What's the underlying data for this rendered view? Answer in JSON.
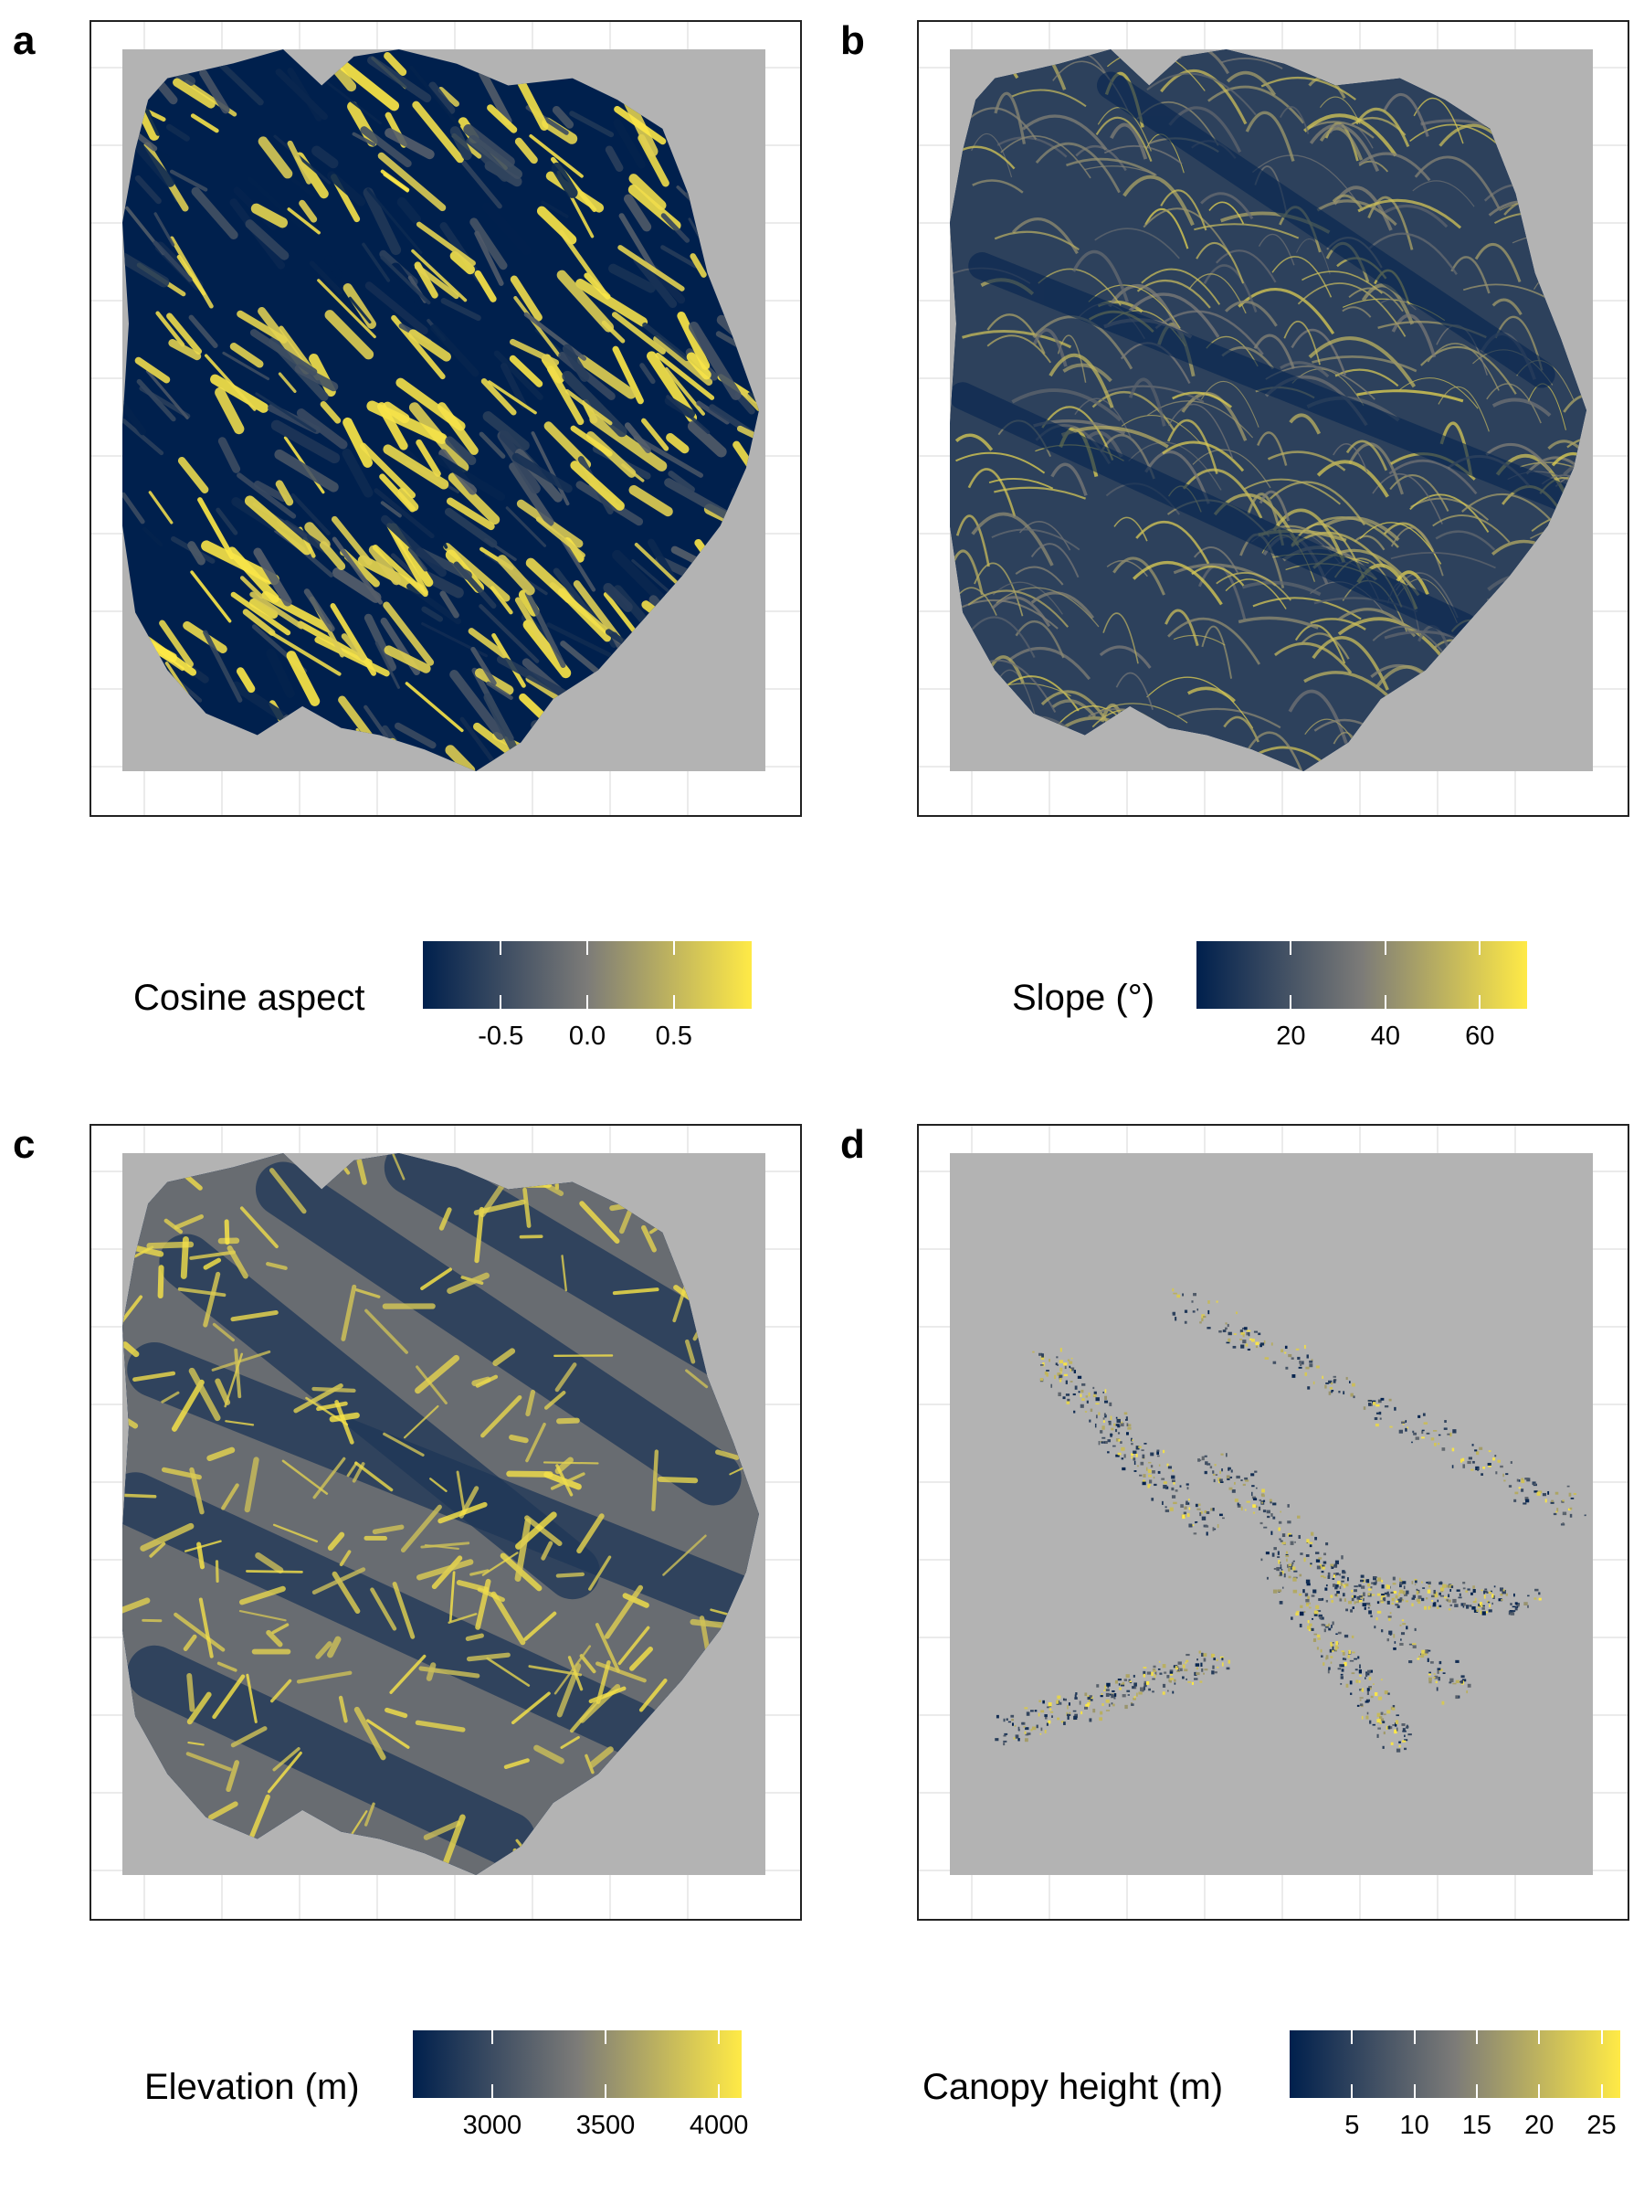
{
  "colors": {
    "low": "#00204d",
    "mid": "#7c7b78",
    "high": "#ffea46",
    "nodata": "#b3b3b3",
    "grid": "#ebebeb"
  },
  "panels": [
    {
      "id": "a",
      "letter": "a",
      "variable": "cosine-aspect",
      "legend_title": "Cosine aspect",
      "range": [
        -0.95,
        0.95
      ],
      "ticks": [
        {
          "value": -0.5,
          "label": "-0.5"
        },
        {
          "value": 0.0,
          "label": "0.0"
        },
        {
          "value": 0.5,
          "label": "0.5"
        }
      ]
    },
    {
      "id": "b",
      "letter": "b",
      "variable": "slope",
      "legend_title": "Slope (°)",
      "range": [
        0,
        70
      ],
      "ticks": [
        {
          "value": 20,
          "label": "20"
        },
        {
          "value": 40,
          "label": "40"
        },
        {
          "value": 60,
          "label": "60"
        }
      ]
    },
    {
      "id": "c",
      "letter": "c",
      "variable": "elevation",
      "legend_title": "Elevation (m)",
      "range": [
        2650,
        4100
      ],
      "ticks": [
        {
          "value": 3000,
          "label": "3000"
        },
        {
          "value": 3500,
          "label": "3500"
        },
        {
          "value": 4000,
          "label": "4000"
        }
      ]
    },
    {
      "id": "d",
      "letter": "d",
      "variable": "canopy-height",
      "legend_title": "Canopy height (m)",
      "range": [
        0,
        26.5
      ],
      "ticks": [
        {
          "value": 5,
          "label": "5"
        },
        {
          "value": 10,
          "label": "10"
        },
        {
          "value": 15,
          "label": "15"
        },
        {
          "value": 20,
          "label": "20"
        },
        {
          "value": 25,
          "label": "25"
        }
      ]
    }
  ]
}
